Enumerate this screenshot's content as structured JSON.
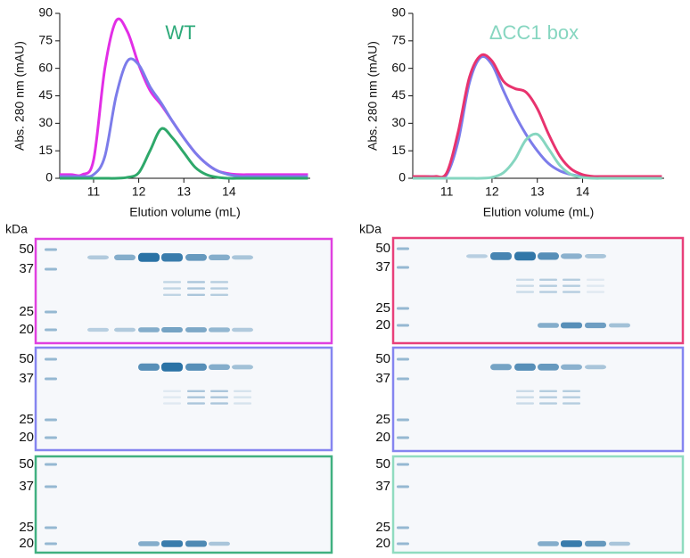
{
  "chart_data": [
    {
      "type": "line",
      "title": "WT",
      "title_color": "#2eaa7a",
      "x_label": "Elution volume (mL)",
      "y_label": "Abs. 280 nm (mAU)",
      "x": [
        10.25,
        10.5,
        10.75,
        11.0,
        11.25,
        11.5,
        11.75,
        12.0,
        12.25,
        12.5,
        12.75,
        13.0,
        13.25,
        13.5,
        13.75,
        14.0,
        14.25,
        14.5,
        15.0,
        15.75
      ],
      "series": [
        {
          "color": "#e22ee6",
          "values": [
            2,
            2,
            2,
            10,
            60,
            86,
            80,
            62,
            48,
            40,
            31,
            22,
            14,
            8,
            4,
            2.5,
            2,
            2,
            2,
            2
          ]
        },
        {
          "color": "#7c7cea",
          "values": [
            1,
            1,
            1,
            2,
            12,
            45,
            64,
            62,
            50,
            41,
            31,
            22,
            14,
            8,
            4,
            2,
            1,
            1,
            1,
            1
          ]
        },
        {
          "color": "#2ea86a",
          "values": [
            0,
            0,
            0,
            0,
            0,
            0,
            0.5,
            3,
            15,
            27,
            22,
            14,
            6,
            2,
            0.5,
            0,
            0,
            0,
            0,
            0
          ]
        }
      ],
      "xlim": [
        10.25,
        15.8
      ],
      "xticks": [
        11,
        12,
        13,
        14
      ],
      "ylim": [
        0,
        90
      ],
      "yticks": [
        0,
        15,
        30,
        45,
        60,
        75,
        90
      ]
    },
    {
      "type": "line",
      "title": "ΔCC1 box",
      "title_color": "#86d6c0",
      "x_label": "Elution volume (mL)",
      "y_label": "Abs. 280 nm (mAU)",
      "x": [
        10.25,
        10.5,
        10.75,
        11.0,
        11.25,
        11.5,
        11.75,
        12.0,
        12.25,
        12.5,
        12.75,
        13.0,
        13.25,
        13.5,
        13.75,
        14.0,
        14.25,
        14.5,
        15.0,
        15.75
      ],
      "series": [
        {
          "color": "#7c7cea",
          "values": [
            1,
            1,
            1,
            2,
            20,
            52,
            66,
            62,
            48,
            35,
            24,
            15,
            8,
            4,
            2,
            1,
            1,
            1,
            1,
            1
          ]
        },
        {
          "color": "#e8336e",
          "values": [
            1,
            1,
            1,
            3,
            25,
            55,
            67,
            64,
            53,
            49,
            47,
            38,
            24,
            12,
            5,
            2,
            1,
            1,
            1,
            1
          ]
        },
        {
          "color": "#86d6c0",
          "values": [
            0,
            0,
            0,
            0,
            0,
            0,
            0,
            0.5,
            3,
            10,
            21,
            24,
            16,
            7,
            2,
            0.5,
            0,
            0,
            0,
            0
          ]
        }
      ],
      "xlim": [
        10.25,
        15.8
      ],
      "xticks": [
        11,
        12,
        13,
        14
      ],
      "ylim": [
        0,
        90
      ],
      "yticks": [
        0,
        15,
        30,
        45,
        60,
        75,
        90
      ]
    }
  ],
  "gels": {
    "unit": "kDa",
    "markers": [
      "50",
      "37",
      "25",
      "20"
    ]
  }
}
